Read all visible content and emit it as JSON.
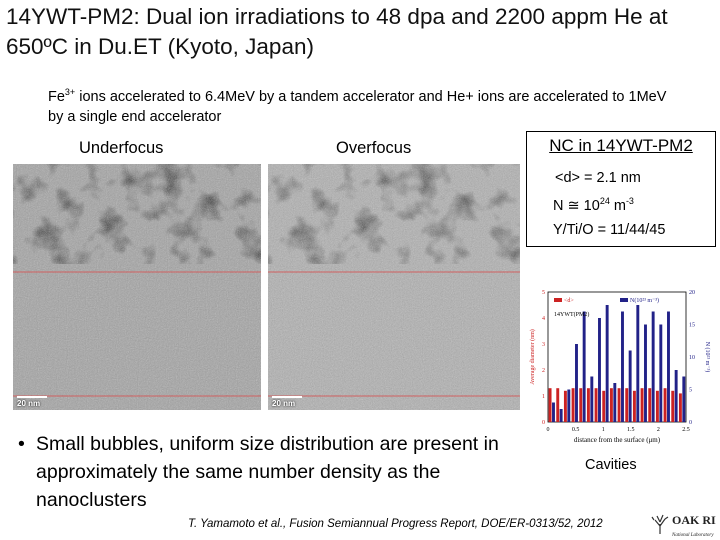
{
  "slide": {
    "title": "14YWT-PM2: Dual ion irradiations to 48 dpa and 2200 appm He at 650ºC in Du.ET (Kyoto, Japan)",
    "intro": {
      "fe": "Fe",
      "fe_charge": "3+",
      "text": " ions accelerated to 6.4MeV by a tandem accelerator and He+ ions are accelerated to 1MeV by a single end accelerator"
    },
    "underfocus_label": "Underfocus",
    "overfocus_label": "Overfocus",
    "scale_bar_label": "20 nm",
    "nc_box": {
      "title": "NC in 14YWT-PM2",
      "diameter": "<d> = 2.1 nm",
      "density_prefix": "N ≅ 10",
      "density_exp": "24",
      "density_unit": " m",
      "density_unit_exp": "-3",
      "ratio": "Y/Ti/O = 11/44/45"
    },
    "bullet": "Small bubbles, uniform size distribution are present in approximately the same number density as the nanoclusters",
    "citation": "T. Yamamoto et al., Fusion Semiannual Progress Report, DOE/ER-0313/52, 2012",
    "chart_caption": "Cavities",
    "logo_text": "OAK RIDGE",
    "logo_subtext": "National Laboratory"
  },
  "chart_data": {
    "type": "bar",
    "title": "",
    "inset_label": "14YWT(PM2)",
    "xlabel": "distance from the surface (μm)",
    "ylabel": "Average diameter (nm)",
    "y2label": "N (10²³ m⁻³)",
    "x_ticks": [
      "0",
      "0.5",
      "1",
      "1.5",
      "2",
      "2.5"
    ],
    "ylim": [
      0,
      5
    ],
    "y2lim": [
      0,
      20
    ],
    "series": [
      {
        "name": "<d>",
        "color": "#cc2222",
        "axis": "left",
        "values": [
          1.3,
          1.3,
          1.2,
          1.3,
          1.3,
          1.3,
          1.3,
          1.2,
          1.3,
          1.3,
          1.3,
          1.2,
          1.3,
          1.3,
          1.2,
          1.3,
          1.2,
          1.1
        ]
      },
      {
        "name": "N(10²³ m⁻³)",
        "color": "#222288",
        "axis": "right",
        "values": [
          3,
          2,
          5,
          12,
          17,
          7,
          16,
          18,
          6,
          17,
          11,
          18,
          15,
          17,
          15,
          17,
          8,
          7
        ]
      }
    ]
  }
}
